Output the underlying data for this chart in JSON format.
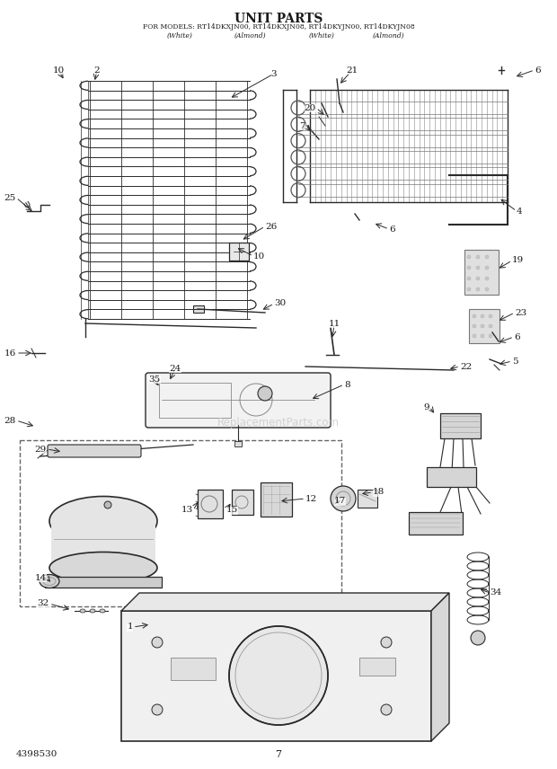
{
  "title_line1": "UNIT PARTS",
  "title_line2": "FOR MODELS: RT14DKXJN00, RT14DKXJN08, RT14DKYJN00, RT14DKYJN08",
  "title_line3_parts": [
    "(White)",
    "(Almond)",
    "(White)",
    "(Almond)"
  ],
  "page_number": "7",
  "part_number": "4398530",
  "bg_color": "#ffffff",
  "fg_color": "#1a1a1a",
  "line_color": "#2a2a2a",
  "watermark": "ReplacementParts.com"
}
